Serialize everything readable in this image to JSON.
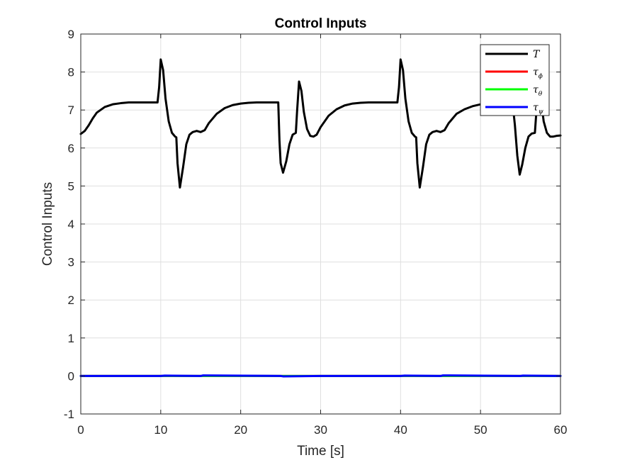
{
  "chart_data": {
    "type": "line",
    "title": "Control Inputs",
    "xlabel": "Time [s]",
    "ylabel": "Control Inputs",
    "xlim": [
      0,
      60
    ],
    "ylim": [
      -1,
      9
    ],
    "xticks": [
      0,
      10,
      20,
      30,
      40,
      50,
      60
    ],
    "yticks": [
      -1,
      0,
      1,
      2,
      3,
      4,
      5,
      6,
      7,
      8,
      9
    ],
    "grid": true,
    "legend_position": "top-right",
    "series": [
      {
        "name": "T",
        "legend_base": "",
        "legend_sub": "",
        "color": "#000000",
        "x": [
          0,
          0.5,
          1,
          1.5,
          2,
          3,
          4,
          5,
          6,
          7,
          8,
          9,
          9.6,
          9.8,
          10,
          10.3,
          10.6,
          11,
          11.4,
          11.8,
          11.95,
          12.1,
          12.4,
          12.8,
          13.2,
          13.6,
          14,
          14.5,
          15,
          15.5,
          16,
          17,
          18,
          19,
          20,
          21,
          22,
          23,
          24,
          24.7,
          24.85,
          25.0,
          25.3,
          25.7,
          26.1,
          26.5,
          26.9,
          27.05,
          27.3,
          27.6,
          27.9,
          28.3,
          28.7,
          29.1,
          29.5,
          30,
          31,
          32,
          33,
          34,
          35,
          36,
          37,
          38,
          39,
          39.6,
          39.8,
          40,
          40.3,
          40.6,
          41,
          41.4,
          41.8,
          41.95,
          42.1,
          42.4,
          42.8,
          43.2,
          43.6,
          44,
          44.5,
          45,
          45.5,
          46,
          47,
          48,
          49,
          50,
          51,
          52,
          53,
          54,
          54.3,
          54.6,
          54.9,
          55.2,
          55.6,
          56,
          56.4,
          56.8,
          57,
          57.3,
          57.6,
          57.9,
          58.3,
          58.7,
          59.1,
          59.5,
          60
        ],
        "y": [
          6.37,
          6.45,
          6.6,
          6.78,
          6.93,
          7.08,
          7.15,
          7.18,
          7.2,
          7.2,
          7.2,
          7.2,
          7.2,
          7.6,
          8.33,
          8.05,
          7.3,
          6.7,
          6.4,
          6.3,
          6.28,
          5.6,
          4.96,
          5.5,
          6.1,
          6.35,
          6.42,
          6.45,
          6.42,
          6.47,
          6.65,
          6.9,
          7.05,
          7.13,
          7.17,
          7.19,
          7.2,
          7.2,
          7.2,
          7.2,
          6.2,
          5.6,
          5.35,
          5.65,
          6.1,
          6.35,
          6.4,
          6.95,
          7.75,
          7.5,
          6.95,
          6.5,
          6.32,
          6.3,
          6.35,
          6.55,
          6.85,
          7.02,
          7.12,
          7.17,
          7.19,
          7.2,
          7.2,
          7.2,
          7.2,
          7.2,
          7.6,
          8.33,
          8.05,
          7.3,
          6.7,
          6.4,
          6.3,
          6.28,
          5.6,
          4.96,
          5.5,
          6.1,
          6.35,
          6.42,
          6.45,
          6.42,
          6.47,
          6.65,
          6.9,
          7.02,
          7.1,
          7.15,
          7.18,
          7.19,
          7.2,
          7.2,
          6.6,
          5.8,
          5.3,
          5.55,
          6.0,
          6.3,
          6.38,
          6.4,
          7.0,
          7.55,
          7.2,
          6.7,
          6.4,
          6.3,
          6.3,
          6.32,
          6.33
        ]
      },
      {
        "name": "τϕ",
        "legend_base": "τ",
        "legend_sub": "ϕ",
        "color": "#ff0000",
        "x": [
          0,
          60
        ],
        "y": [
          0,
          0
        ]
      },
      {
        "name": "τθ",
        "legend_base": "τ",
        "legend_sub": "θ",
        "color": "#00ff00",
        "x": [
          0,
          60
        ],
        "y": [
          0,
          0
        ]
      },
      {
        "name": "τψ",
        "legend_base": "τ",
        "legend_sub": "ψ",
        "color": "#0000ff",
        "x": [
          0,
          10,
          10.5,
          15,
          15.3,
          25,
          25.3,
          30,
          40,
          40.5,
          45,
          45.3,
          55,
          55.3,
          60
        ],
        "y": [
          0,
          0,
          0.01,
          0,
          0.015,
          0,
          -0.01,
          0,
          0,
          0.01,
          0,
          0.015,
          0,
          0.01,
          0
        ]
      }
    ]
  }
}
